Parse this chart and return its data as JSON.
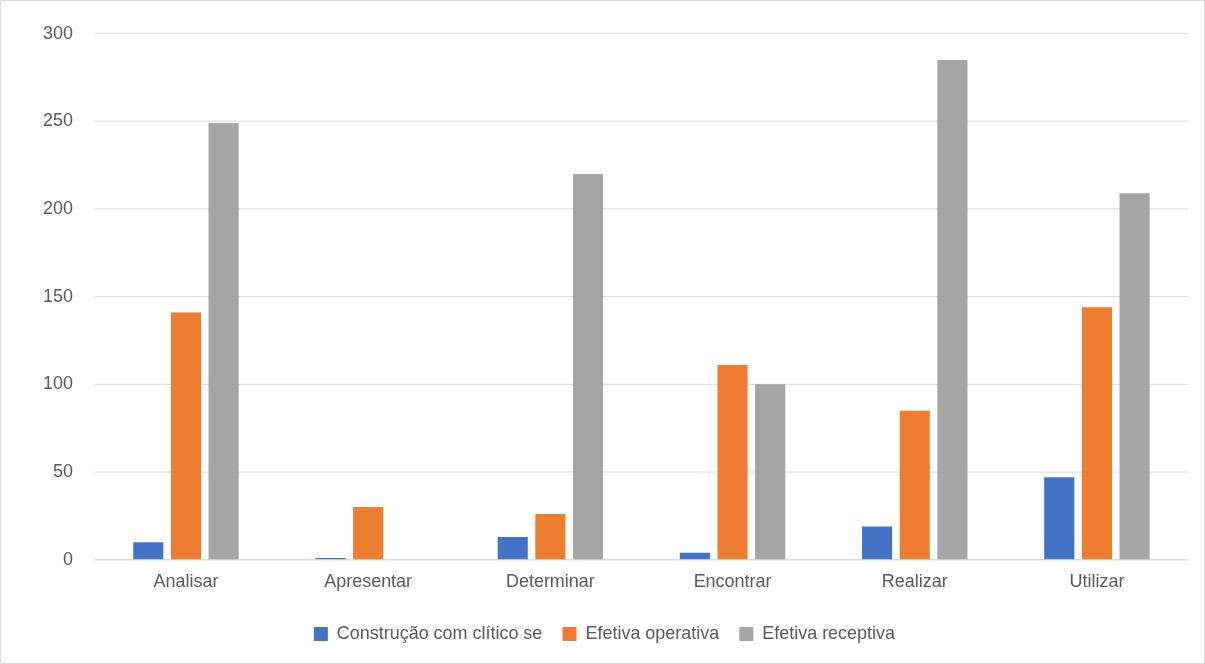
{
  "chart_data": {
    "type": "bar",
    "categories": [
      "Analisar",
      "Apresentar",
      "Determinar",
      "Encontrar",
      "Realizar",
      "Utilizar"
    ],
    "series": [
      {
        "name": "Construção com clítico se",
        "color": "#4472c4",
        "values": [
          10,
          1,
          13,
          4,
          19,
          47
        ]
      },
      {
        "name": "Efetiva operativa",
        "color": "#ed7d31",
        "values": [
          141,
          30,
          26,
          111,
          85,
          144
        ]
      },
      {
        "name": "Efetiva receptiva",
        "color": "#a5a5a5",
        "values": [
          249,
          0,
          220,
          100,
          285,
          209
        ]
      }
    ],
    "ylim": [
      0,
      300
    ],
    "yticks": [
      0,
      50,
      100,
      150,
      200,
      250,
      300
    ],
    "grid": "y",
    "legend": "bottom"
  }
}
